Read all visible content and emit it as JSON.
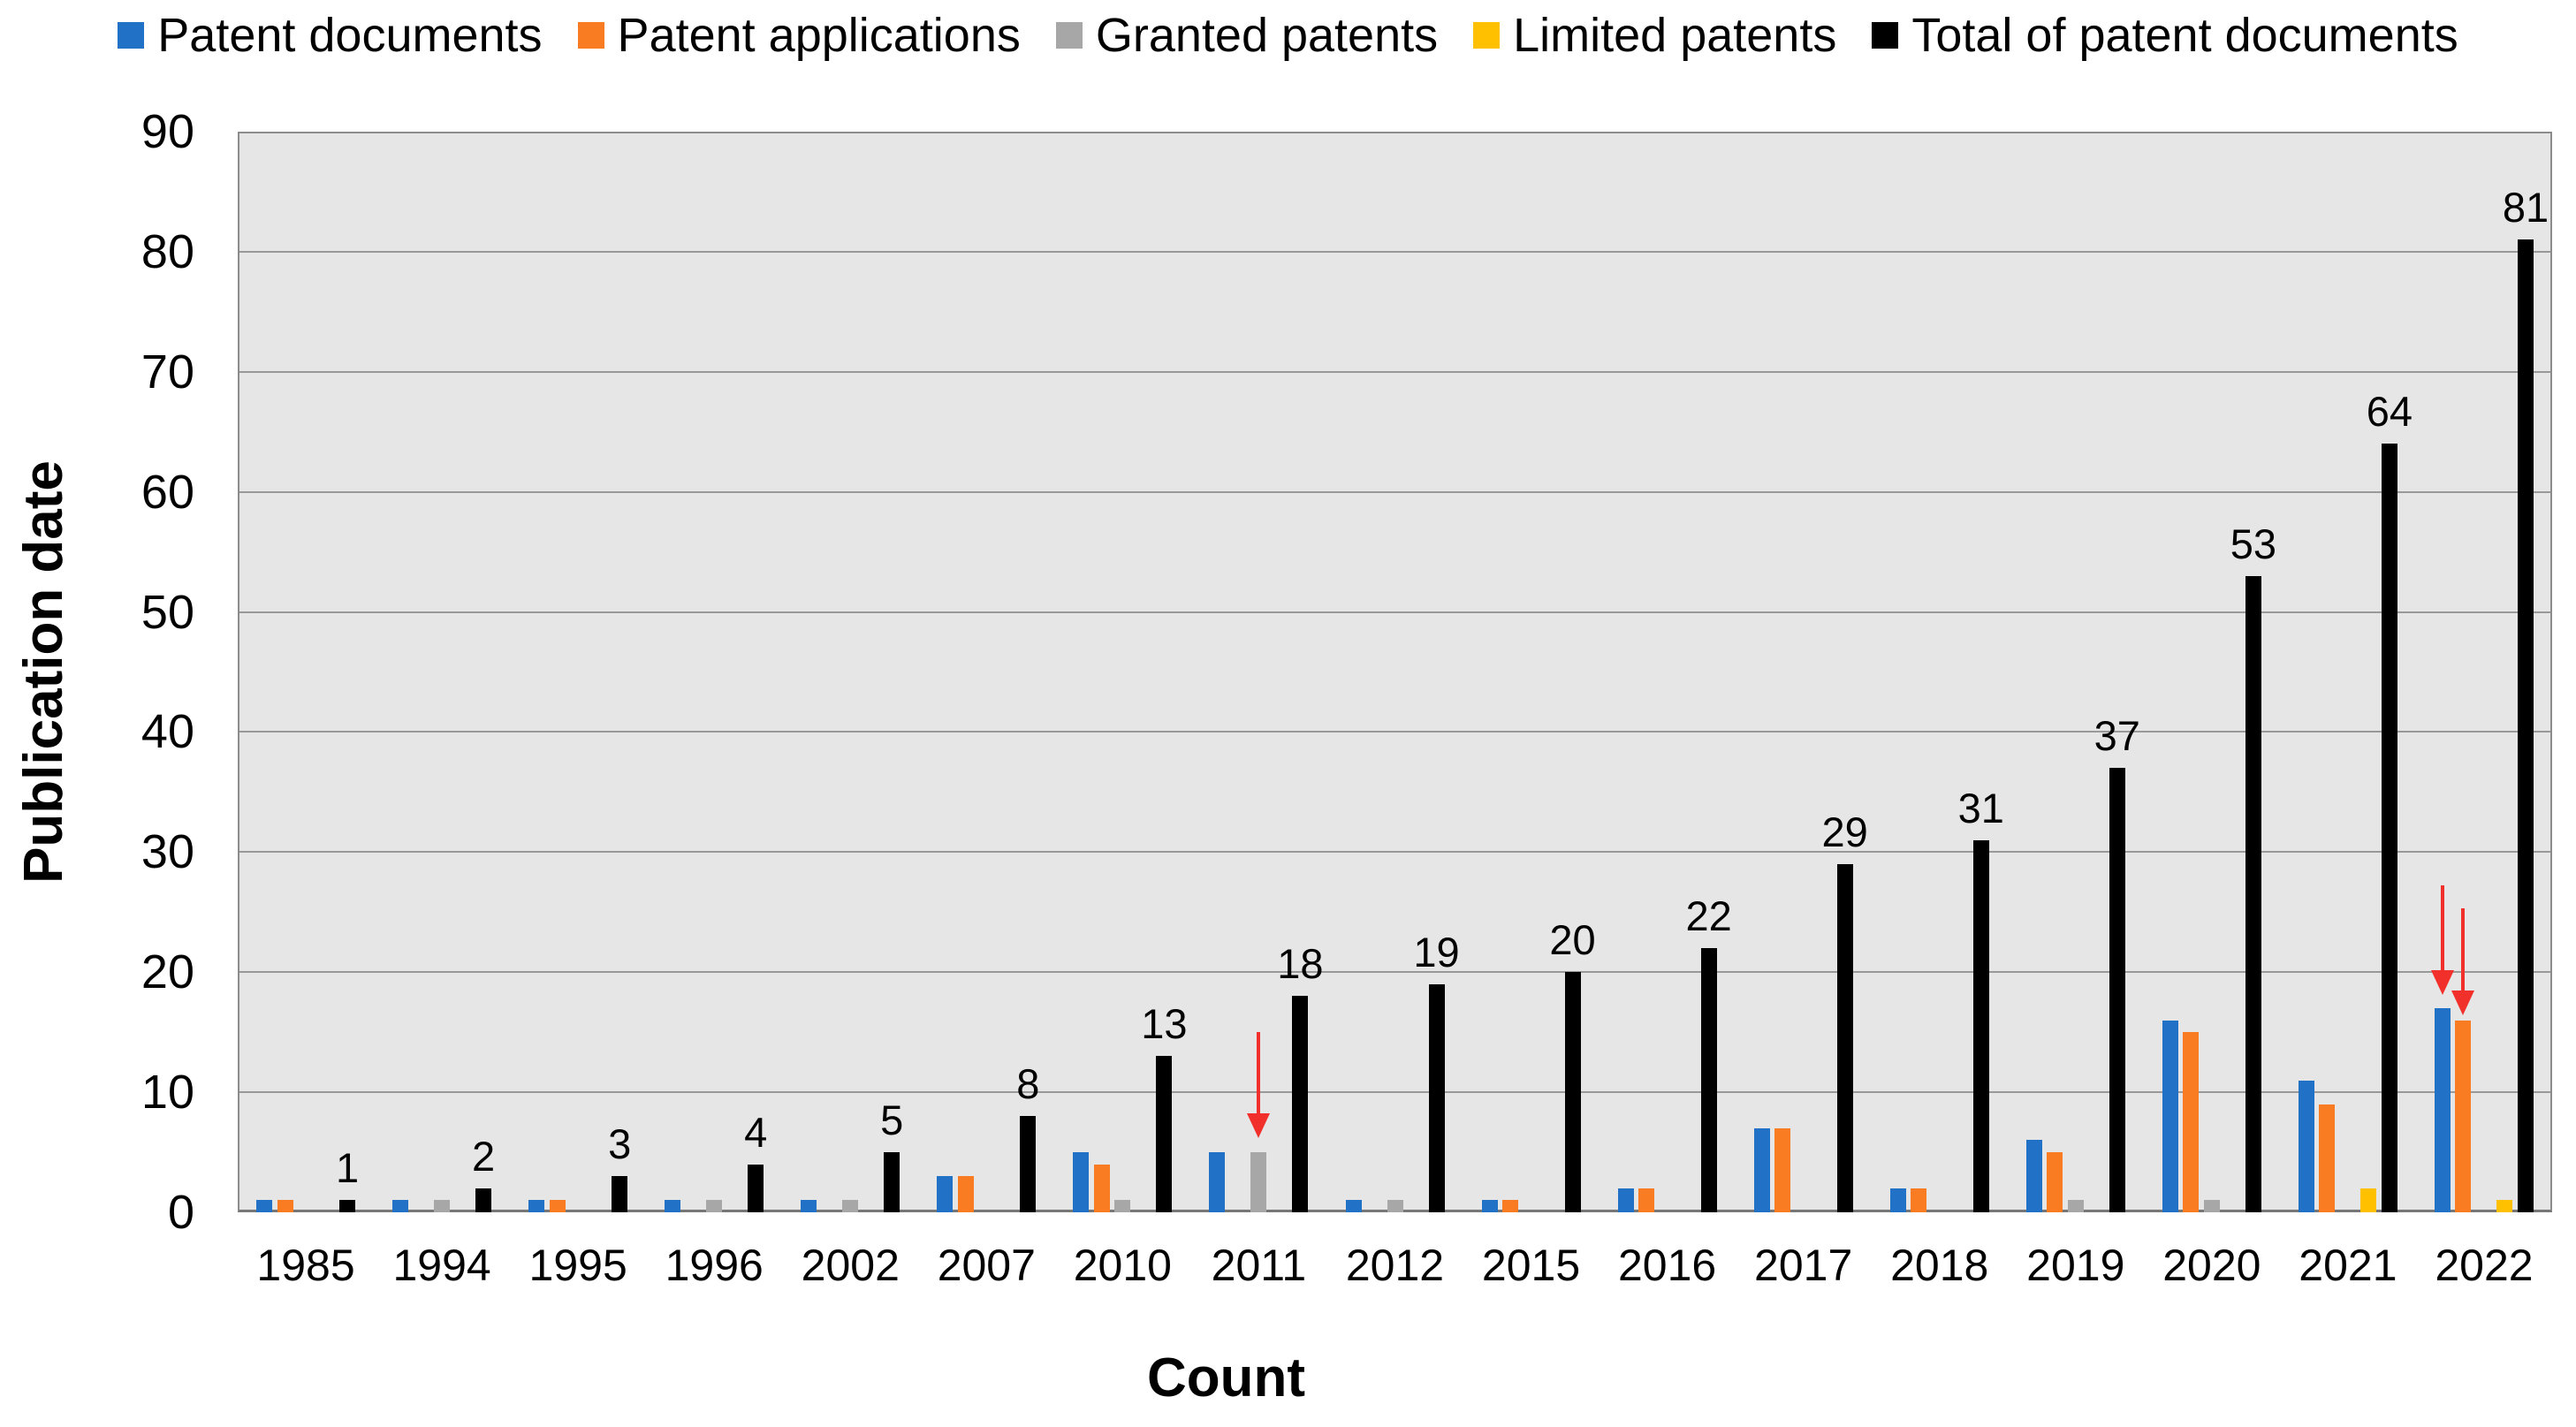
{
  "chart_data": {
    "type": "bar",
    "title": "",
    "xlabel": "Count",
    "ylabel": "Publication date",
    "ylim": [
      0,
      90
    ],
    "yticks": [
      0,
      10,
      20,
      30,
      40,
      50,
      60,
      70,
      80,
      90
    ],
    "grid": "horizontal",
    "gridline_color": "#999999",
    "plot_background": "#E6E6E6",
    "legend_position": "top",
    "categories": [
      "1985",
      "1994",
      "1995",
      "1996",
      "2002",
      "2007",
      "2010",
      "2011",
      "2012",
      "2015",
      "2016",
      "2017",
      "2018",
      "2019",
      "2020",
      "2021",
      "2022"
    ],
    "series": [
      {
        "name": "Patent documents",
        "color": "#2171C7",
        "values": [
          1,
          1,
          1,
          1,
          1,
          3,
          5,
          5,
          1,
          1,
          2,
          7,
          2,
          6,
          16,
          11,
          17
        ]
      },
      {
        "name": "Patent applications",
        "color": "#F97C23",
        "values": [
          1,
          0,
          1,
          0,
          0,
          3,
          4,
          0,
          0,
          1,
          2,
          7,
          2,
          5,
          15,
          9,
          16
        ]
      },
      {
        "name": "Granted patents",
        "color": "#A7A7A7",
        "values": [
          0,
          1,
          0,
          1,
          1,
          0,
          1,
          5,
          1,
          0,
          0,
          0,
          0,
          1,
          1,
          0,
          0
        ]
      },
      {
        "name": "Limited patents",
        "color": "#FFC000",
        "values": [
          0,
          0,
          0,
          0,
          0,
          0,
          0,
          0,
          0,
          0,
          0,
          0,
          0,
          0,
          0,
          2,
          1
        ]
      },
      {
        "name": "Total of patent documents",
        "color": "#000000",
        "values": [
          1,
          2,
          3,
          4,
          5,
          8,
          13,
          18,
          19,
          20,
          22,
          29,
          31,
          37,
          53,
          64,
          81
        ]
      }
    ],
    "total_labels": [
      1,
      2,
      3,
      4,
      5,
      8,
      13,
      18,
      19,
      20,
      22,
      29,
      31,
      37,
      53,
      64,
      81
    ],
    "annotations": [
      {
        "type": "arrow",
        "color": "#F2302B",
        "target_category": "2011",
        "target_series": "Granted patents",
        "from_value": 15.0,
        "to_value": 6.2
      },
      {
        "type": "arrow",
        "color": "#F2302B",
        "target_category": "2022",
        "target_series": "Patent documents",
        "from_value": 27.2,
        "to_value": 18.1
      },
      {
        "type": "arrow",
        "color": "#F2302B",
        "target_category": "2022",
        "target_series": "Patent applications",
        "from_value": 25.3,
        "to_value": 16.4
      }
    ]
  },
  "axes": {
    "x_title": "Count",
    "y_title": "Publication date"
  }
}
